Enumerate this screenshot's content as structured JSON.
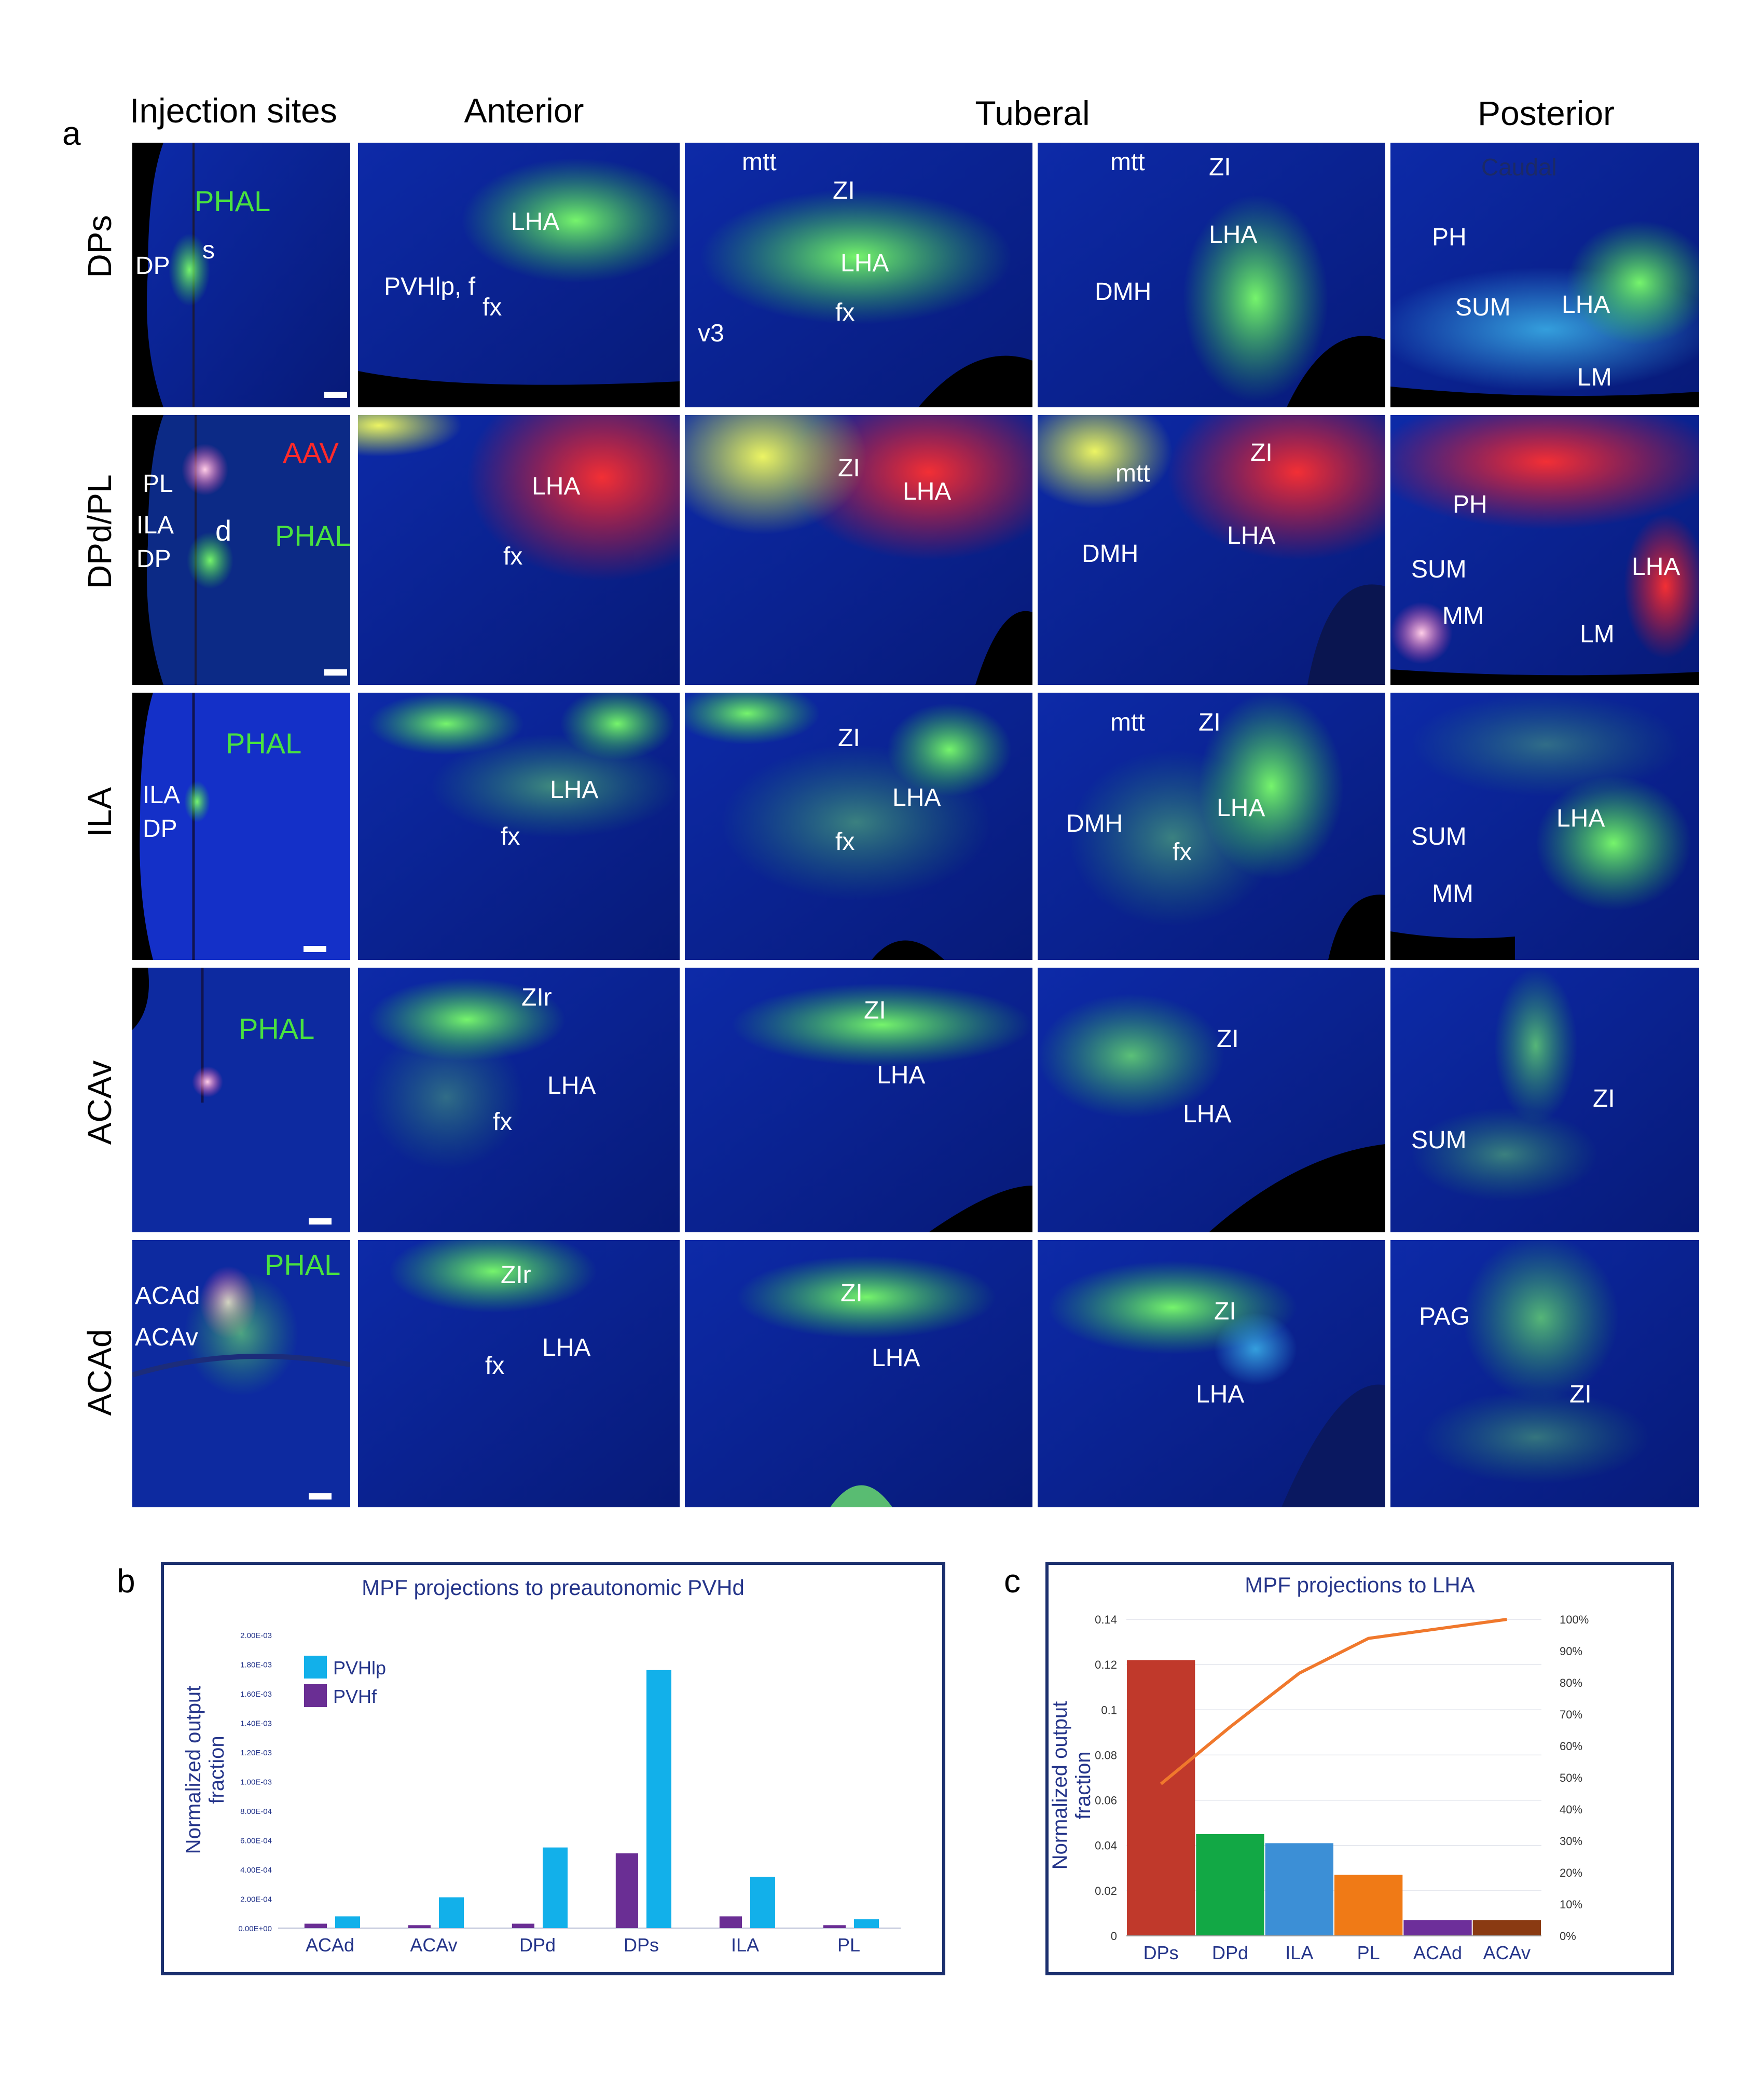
{
  "panels": {
    "a": "a",
    "b": "b",
    "c": "c"
  },
  "column_headers": [
    "Injection sites",
    "Anterior",
    "Tuberal",
    "Posterior"
  ],
  "row_labels": [
    "DPs",
    "DPd/PL",
    "ILA",
    "ACAv",
    "ACAd"
  ],
  "injection_labels": {
    "row1": [
      "PHAL",
      "s",
      "DP"
    ],
    "row2": [
      "AAV",
      "PL",
      "ILA",
      "d",
      "PHAL",
      "DP"
    ],
    "row3": [
      "PHAL",
      "ILA",
      "DP"
    ],
    "row4": [
      "PHAL"
    ],
    "row5": [
      "PHAL",
      "ACAd",
      "ACAv"
    ]
  },
  "tile_labels": {
    "r1c2": [
      "LHA",
      "PVHlp, f",
      "fx"
    ],
    "r1c3": [
      "mtt",
      "ZI",
      "LHA",
      "fx",
      "v3"
    ],
    "r1c4": [
      "mtt",
      "ZI",
      "LHA",
      "DMH"
    ],
    "r1c5": [
      "Caudal",
      "PH",
      "SUM",
      "LHA",
      "LM"
    ],
    "r2c2": [
      "LHA",
      "fx"
    ],
    "r2c3": [
      "ZI",
      "LHA"
    ],
    "r2c4": [
      "mtt",
      "ZI",
      "DMH",
      "LHA"
    ],
    "r2c5": [
      "PH",
      "SUM",
      "LHA",
      "MM",
      "LM"
    ],
    "r3c2": [
      "LHA",
      "fx"
    ],
    "r3c3": [
      "ZI",
      "LHA",
      "fx"
    ],
    "r3c4": [
      "mtt",
      "ZI",
      "DMH",
      "LHA",
      "fx"
    ],
    "r3c5": [
      "SUM",
      "LHA",
      "MM"
    ],
    "r4c2": [
      "ZIr",
      "LHA",
      "fx"
    ],
    "r4c3": [
      "ZI",
      "LHA"
    ],
    "r4c4": [
      "ZI",
      "LHA"
    ],
    "r4c5": [
      "ZI",
      "SUM"
    ],
    "r5c2": [
      "ZIr",
      "fx",
      "LHA"
    ],
    "r5c3": [
      "ZI",
      "LHA"
    ],
    "r5c4": [
      "ZI",
      "LHA"
    ],
    "r5c5": [
      "PAG",
      "ZI"
    ]
  },
  "colors": {
    "tissue_blue": "#0b1f8a",
    "phal_green": "#49e23f",
    "aav_red": "#ff2a2a",
    "chart_frame": "#1b2f6e",
    "b_pvhlp": "#12b0ea",
    "b_pvhf": "#6a2e94",
    "c_line": "#f0782c"
  },
  "chart_data": [
    {
      "type": "bar",
      "title": "MPF projections to preautonomic PVHd",
      "xlabel": "",
      "ylabel": "Normalized output fraction",
      "categories": [
        "ACAd",
        "ACAv",
        "DPd",
        "DPs",
        "ILA",
        "PL"
      ],
      "ylim": [
        0,
        0.002
      ],
      "yticks": [
        "0.00E+00",
        "2.00E-04",
        "4.00E-04",
        "6.00E-04",
        "8.00E-04",
        "1.00E-03",
        "1.20E-03",
        "1.40E-03",
        "1.60E-03",
        "1.80E-03",
        "2.00E-03"
      ],
      "series": [
        {
          "name": "PVHf",
          "color": "#6a2e94",
          "values": [
            3e-05,
            2e-05,
            3e-05,
            0.00051,
            8e-05,
            2e-05
          ]
        },
        {
          "name": "PVHlp",
          "color": "#12b0ea",
          "values": [
            8e-05,
            0.00021,
            0.00055,
            0.00176,
            0.00035,
            6e-05
          ]
        }
      ],
      "legend": "top-left"
    },
    {
      "type": "bar",
      "title": "MPF projections to LHA",
      "xlabel": "",
      "ylabel": "Normalized output fraction",
      "categories": [
        "DPs",
        "DPd",
        "ILA",
        "PL",
        "ACAd",
        "ACAv"
      ],
      "ylim": [
        0,
        0.14
      ],
      "yticks": [
        "0",
        "0.02",
        "0.04",
        "0.06",
        "0.08",
        "0.1",
        "0.12",
        "0.14"
      ],
      "y2ticks": [
        "0%",
        "10%",
        "20%",
        "30%",
        "40%",
        "50%",
        "60%",
        "70%",
        "80%",
        "90%",
        "100%"
      ],
      "bar_colors": [
        "#c0392b",
        "#12a845",
        "#3c8fd6",
        "#f07a16",
        "#6d2f9a",
        "#8a3a12"
      ],
      "values": [
        0.122,
        0.045,
        0.041,
        0.027,
        0.007,
        0.007
      ],
      "cumulative_percent": [
        48,
        66,
        83,
        94,
        97,
        100
      ]
    }
  ]
}
